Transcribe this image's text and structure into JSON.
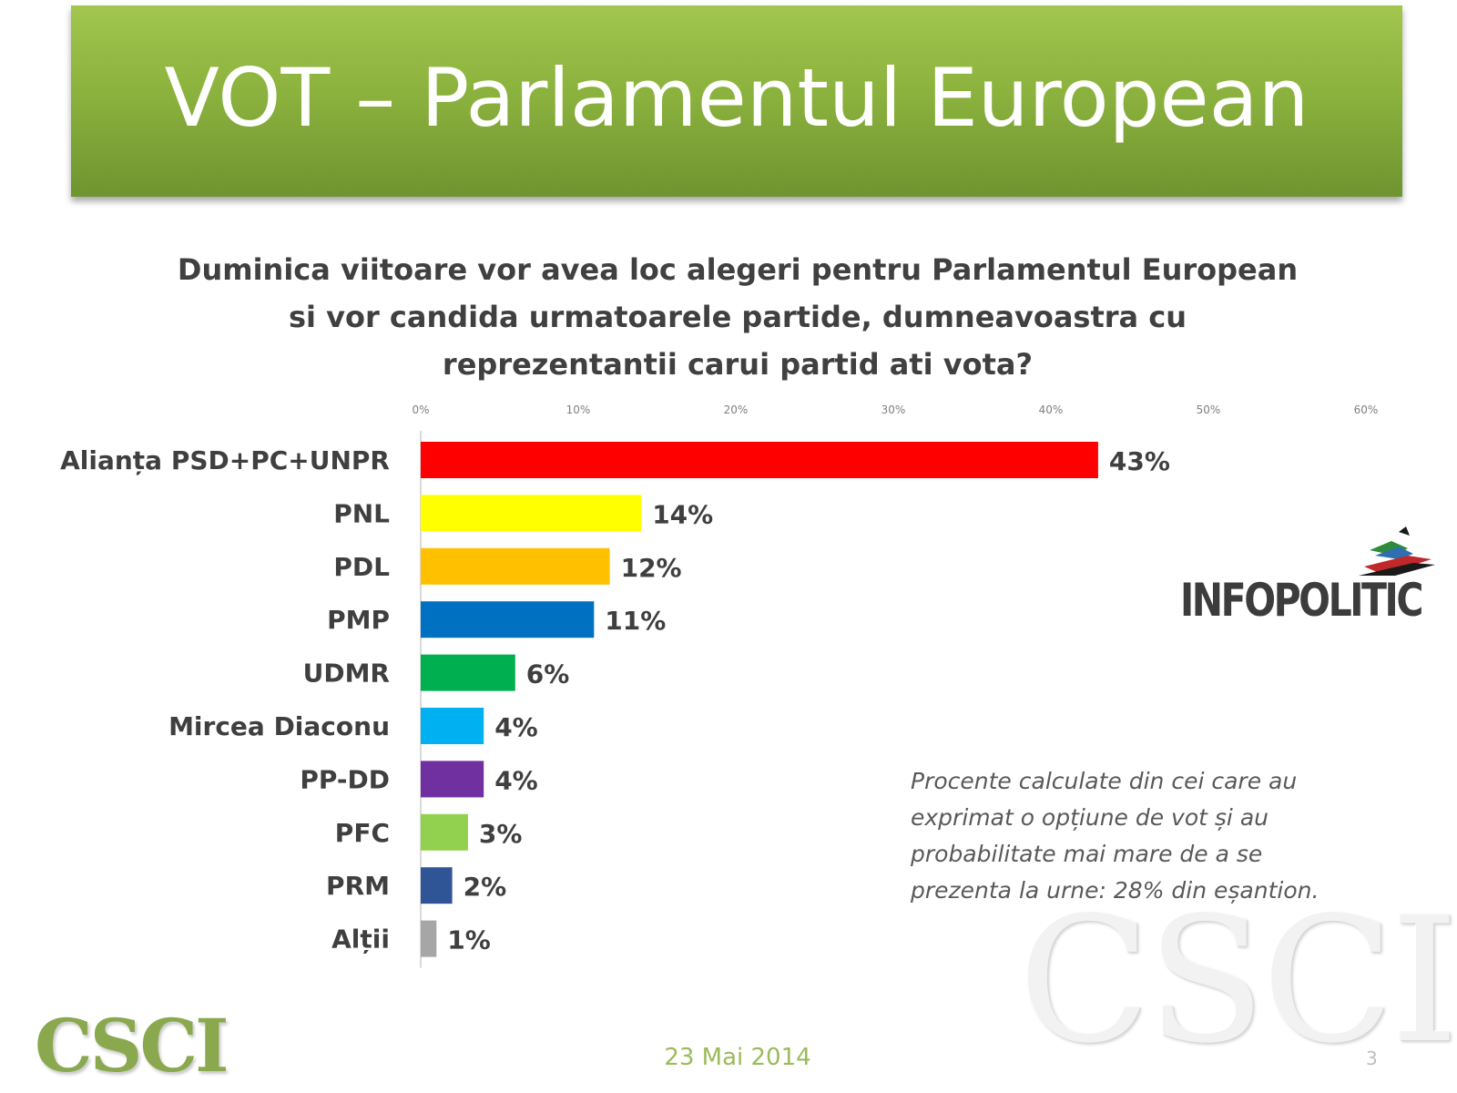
{
  "slide": {
    "title": "VOT – Parlamentul European",
    "question_lines": [
      "Duminica viitoare vor avea loc alegeri pentru Parlamentul European",
      "si vor candida urmatoarele partide, dumneavoastra cu",
      "reprezentantii carui partid ati vota?"
    ],
    "footnote_lines": [
      "Procente calculate din cei care au",
      "exprimat o opțiune de vot și au",
      "probabilitate mai mare de a se",
      "prezenta la urne: 28% din eșantion."
    ],
    "footer_date": "23 Mai 2014",
    "page_number": "3",
    "logos": {
      "infopolitic": "INFOPOLITIC",
      "csci": "CSCI",
      "watermark": "CSCI"
    }
  },
  "chart_data": {
    "type": "bar",
    "orientation": "horizontal",
    "title": "",
    "xlabel": "",
    "ylabel": "",
    "xlim": [
      0,
      60
    ],
    "x_ticks": [
      "0%",
      "10%",
      "20%",
      "30%",
      "40%",
      "50%",
      "60%"
    ],
    "x_tick_values": [
      0,
      10,
      20,
      30,
      40,
      50,
      60
    ],
    "grid": false,
    "legend": "none",
    "categories": [
      "Alianța PSD+PC+UNPR",
      "PNL",
      "PDL",
      "PMP",
      "UDMR",
      "Mircea Diaconu",
      "PP-DD",
      "PFC",
      "PRM",
      "Alții"
    ],
    "values": [
      43,
      14,
      12,
      11,
      6,
      4,
      4,
      3,
      2,
      1
    ],
    "value_labels": [
      "43%",
      "14%",
      "12%",
      "11%",
      "6%",
      "4%",
      "4%",
      "3%",
      "2%",
      "1%"
    ],
    "colors": [
      "#ff0000",
      "#ffff00",
      "#ffc000",
      "#0070c0",
      "#00b050",
      "#00b0f0",
      "#7030a0",
      "#92d050",
      "#2f5597",
      "#a6a6a6"
    ]
  }
}
